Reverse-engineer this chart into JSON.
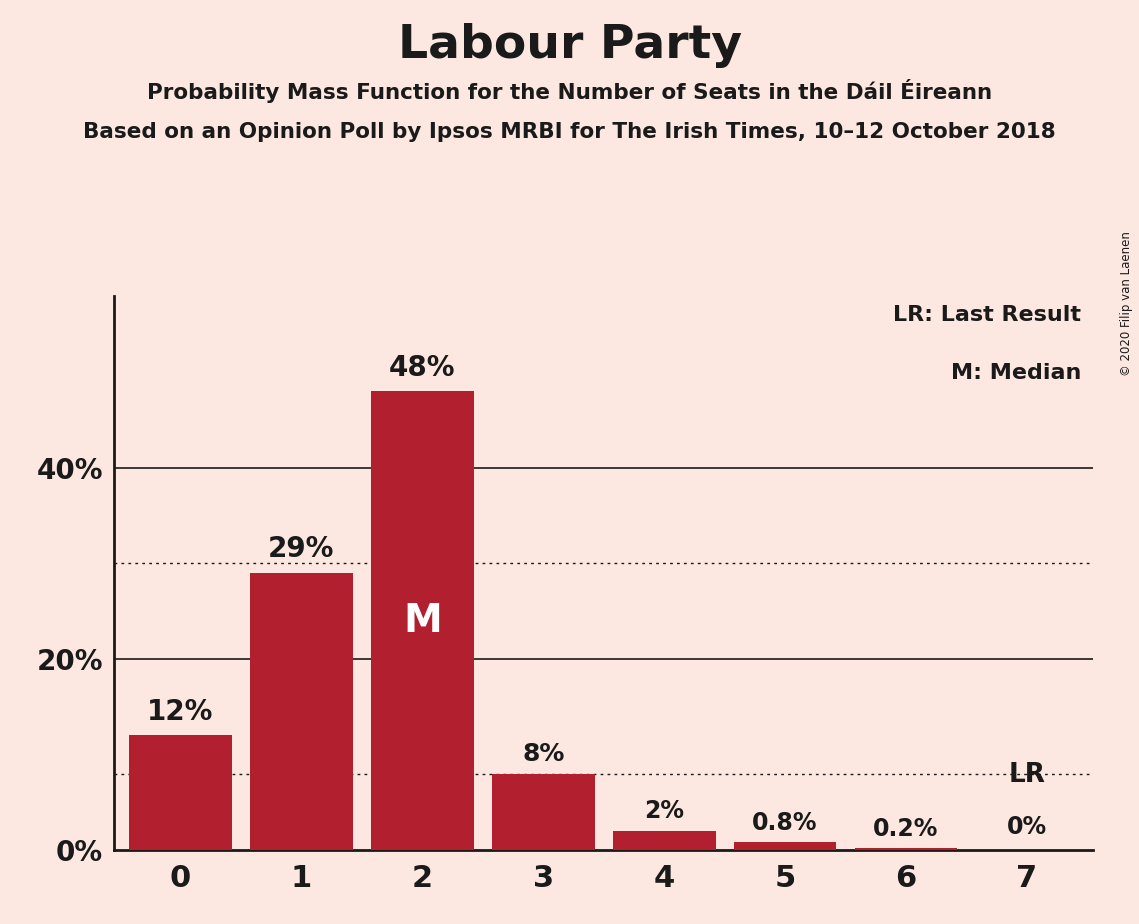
{
  "title": "Labour Party",
  "subtitle1": "Probability Mass Function for the Number of Seats in the Dáil Éireann",
  "subtitle2": "Based on an Opinion Poll by Ipsos MRBI for The Irish Times, 10–12 October 2018",
  "copyright": "© 2020 Filip van Laenen",
  "categories": [
    0,
    1,
    2,
    3,
    4,
    5,
    6,
    7
  ],
  "values": [
    12,
    29,
    48,
    8,
    2,
    0.8,
    0.2,
    0
  ],
  "bar_color": "#b22030",
  "background_color": "#fce8e0",
  "text_color": "#1a1a1a",
  "median_bar": 2,
  "last_result_bar": 7,
  "median_label": "M",
  "lr_label": "LR",
  "legend_lr": "LR: Last Result",
  "legend_m": "M: Median",
  "yticks": [
    0,
    20,
    40
  ],
  "ylim": [
    0,
    58
  ],
  "dotted_lines": [
    8,
    30
  ],
  "solid_lines": [
    20,
    40
  ],
  "value_labels": [
    "12%",
    "29%",
    "48%",
    "8%",
    "2%",
    "0.8%",
    "0.2%",
    "0%"
  ]
}
